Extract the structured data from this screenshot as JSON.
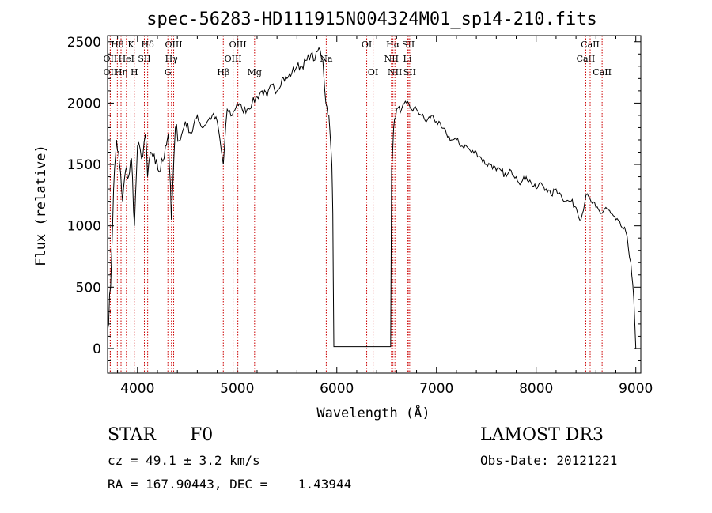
{
  "chart_data": {
    "type": "line",
    "title": "spec-56283-HD111915N004324M01_sp14-210.fits",
    "xlabel": "Wavelength (Å)",
    "ylabel": "Flux (relative)",
    "xlim": [
      3700,
      9050
    ],
    "ylim": [
      -200,
      2550
    ],
    "x_ticks": [
      4000,
      5000,
      6000,
      7000,
      8000,
      9000
    ],
    "x_tick_labels": [
      "4000",
      "5000",
      "6000",
      "7000",
      "8000",
      "9000"
    ],
    "y_ticks": [
      0,
      500,
      1000,
      1500,
      2000,
      2500
    ],
    "y_tick_labels": [
      "0",
      "500",
      "1000",
      "1500",
      "2000",
      "2500"
    ],
    "grid": false,
    "line_color": "#000000",
    "marker_color": "#cc0000",
    "spectrum": {
      "x": [
        3700,
        3730,
        3760,
        3790,
        3820,
        3850,
        3880,
        3910,
        3940,
        3970,
        4000,
        4040,
        4080,
        4101,
        4130,
        4180,
        4230,
        4280,
        4310,
        4340,
        4380,
        4430,
        4480,
        4540,
        4600,
        4650,
        4700,
        4750,
        4800,
        4861,
        4900,
        4950,
        5000,
        5050,
        5100,
        5150,
        5200,
        5250,
        5300,
        5350,
        5400,
        5450,
        5500,
        5550,
        5600,
        5650,
        5700,
        5740,
        5780,
        5820,
        5860,
        5890,
        5920,
        5950,
        5960,
        5970,
        6540,
        6550,
        6570,
        6600,
        6650,
        6700,
        6750,
        6800,
        6850,
        6900,
        6950,
        7000,
        7050,
        7100,
        7150,
        7200,
        7250,
        7300,
        7350,
        7400,
        7450,
        7500,
        7550,
        7600,
        7650,
        7700,
        7750,
        7800,
        7850,
        7900,
        7950,
        8000,
        8050,
        8100,
        8150,
        8200,
        8250,
        8300,
        8350,
        8400,
        8450,
        8500,
        8550,
        8600,
        8650,
        8700,
        8750,
        8800,
        8850,
        8900,
        8950,
        8980,
        9000
      ],
      "y": [
        150,
        500,
        1300,
        1700,
        1500,
        1200,
        1450,
        1400,
        1550,
        1000,
        1650,
        1550,
        1750,
        1400,
        1600,
        1500,
        1450,
        1650,
        1750,
        1050,
        1800,
        1700,
        1850,
        1750,
        1900,
        1800,
        1850,
        1900,
        1850,
        1500,
        1950,
        1900,
        2000,
        1950,
        1950,
        2000,
        2050,
        2100,
        2050,
        2150,
        2100,
        2200,
        2200,
        2250,
        2300,
        2300,
        2350,
        2400,
        2350,
        2450,
        2350,
        2000,
        1900,
        1500,
        1100,
        15,
        15,
        1450,
        1800,
        1950,
        1950,
        2000,
        1950,
        1950,
        1900,
        1850,
        1900,
        1850,
        1800,
        1750,
        1700,
        1700,
        1650,
        1650,
        1600,
        1600,
        1550,
        1500,
        1500,
        1450,
        1450,
        1400,
        1450,
        1400,
        1350,
        1400,
        1350,
        1300,
        1350,
        1300,
        1250,
        1300,
        1250,
        1200,
        1200,
        1150,
        1050,
        1250,
        1200,
        1150,
        1100,
        1150,
        1100,
        1050,
        1000,
        950,
        700,
        400,
        0
      ]
    },
    "line_markers": [
      {
        "label": "OII",
        "wavelength": 3727,
        "row": 2
      },
      {
        "label": "Hθ",
        "wavelength": 3798,
        "row": 0
      },
      {
        "label": "OII",
        "wavelength": 3727,
        "row": 1
      },
      {
        "label": "Hη",
        "wavelength": 3835,
        "row": 2
      },
      {
        "label": "HeI",
        "wavelength": 3889,
        "row": 1
      },
      {
        "label": "K",
        "wavelength": 3934,
        "row": 0
      },
      {
        "label": "H",
        "wavelength": 3968,
        "row": 2
      },
      {
        "label": "SII",
        "wavelength": 4069,
        "row": 1
      },
      {
        "label": "Hδ",
        "wavelength": 4102,
        "row": 0
      },
      {
        "label": "G",
        "wavelength": 4305,
        "row": 2
      },
      {
        "label": "Hγ",
        "wavelength": 4341,
        "row": 1
      },
      {
        "label": "OIII",
        "wavelength": 4363,
        "row": 0
      },
      {
        "label": "Hβ",
        "wavelength": 4861,
        "row": 2
      },
      {
        "label": "OIII",
        "wavelength": 4959,
        "row": 1
      },
      {
        "label": "OIII",
        "wavelength": 5007,
        "row": 0
      },
      {
        "label": "Mg",
        "wavelength": 5175,
        "row": 2
      },
      {
        "label": "Na",
        "wavelength": 5894,
        "row": 1
      },
      {
        "label": "OI",
        "wavelength": 6300,
        "row": 0
      },
      {
        "label": "OI",
        "wavelength": 6364,
        "row": 2
      },
      {
        "label": "NII",
        "wavelength": 6548,
        "row": 1
      },
      {
        "label": "Hα",
        "wavelength": 6563,
        "row": 0
      },
      {
        "label": "NII",
        "wavelength": 6583,
        "row": 2
      },
      {
        "label": "Li",
        "wavelength": 6708,
        "row": 1
      },
      {
        "label": "SII",
        "wavelength": 6717,
        "row": 0
      },
      {
        "label": "SII",
        "wavelength": 6731,
        "row": 2
      },
      {
        "label": "CaII",
        "wavelength": 8498,
        "row": 1
      },
      {
        "label": "CaII",
        "wavelength": 8542,
        "row": 0
      },
      {
        "label": "CaII",
        "wavelength": 8662,
        "row": 2
      }
    ]
  },
  "info": {
    "object_class": "STAR",
    "subclass": "F0",
    "survey": "LAMOST DR3",
    "redshift": "cz = 49.1 ± 3.2 km/s",
    "obs_date": "Obs-Date: 20121221",
    "coords": "RA = 167.90443, DEC =    1.43944"
  }
}
